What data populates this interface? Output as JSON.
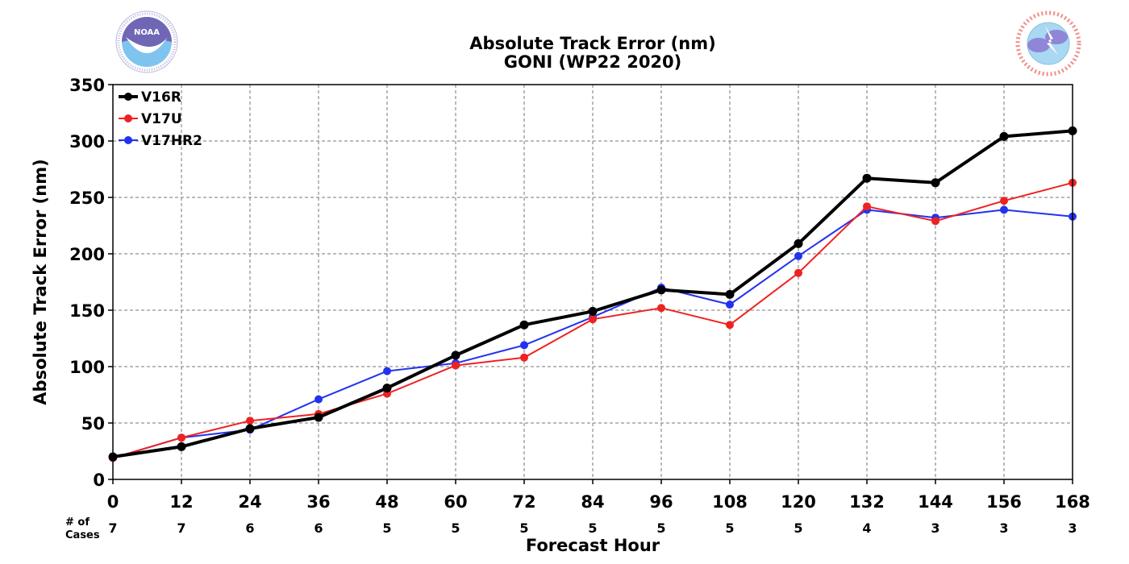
{
  "logos": {
    "left": {
      "name": "NOAA",
      "text": "NOAA",
      "ring_text": "NATIONAL OCEANIC AND ATMOSPHERIC ADMINISTRATION · U.S. DEPARTMENT OF COMMERCE"
    },
    "right": {
      "name": "National Weather Service",
      "ring_text": "NATIONAL WEATHER SERVICE"
    }
  },
  "cases_label_line1": "# of",
  "cases_label_line2": "Cases",
  "cases": [
    7,
    7,
    6,
    6,
    5,
    5,
    5,
    5,
    5,
    5,
    5,
    4,
    3,
    3,
    3
  ],
  "chart_data": {
    "type": "line",
    "title": "Absolute Track Error (nm)",
    "subtitle": "GONI (WP22 2020)",
    "xlabel": "Forecast Hour",
    "ylabel": "Absolute Track Error (nm)",
    "xlim": [
      0,
      168
    ],
    "ylim": [
      0,
      350
    ],
    "x": [
      0,
      12,
      24,
      36,
      48,
      60,
      72,
      84,
      96,
      108,
      120,
      132,
      144,
      156,
      168
    ],
    "yticks": [
      0,
      50,
      100,
      150,
      200,
      250,
      300,
      350
    ],
    "grid": true,
    "legend_position": "top-left",
    "series": [
      {
        "name": "V16R",
        "color": "#000000",
        "values": [
          20,
          29,
          45,
          55,
          81,
          110,
          137,
          149,
          168,
          164,
          209,
          267,
          263,
          304,
          309
        ]
      },
      {
        "name": "V17U",
        "color": "#ee2222",
        "values": [
          19,
          37,
          52,
          58,
          76,
          101,
          108,
          142,
          152,
          137,
          183,
          242,
          229,
          247,
          263
        ]
      },
      {
        "name": "V17HR2",
        "color": "#2233ee",
        "values": [
          19,
          37,
          44,
          71,
          96,
          103,
          119,
          144,
          170,
          155,
          198,
          239,
          232,
          239,
          233
        ]
      }
    ]
  }
}
